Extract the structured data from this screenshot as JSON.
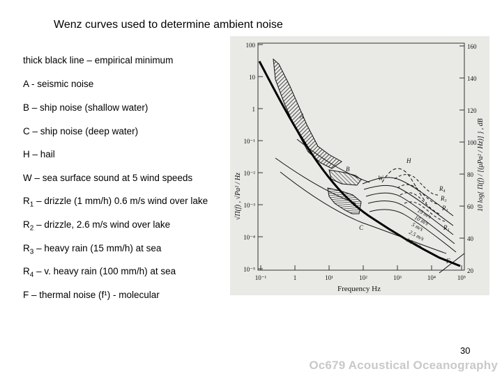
{
  "slide": {
    "title": "Wenz curves used to determine ambient noise",
    "legend": [
      {
        "main": "thick black line – empirical minimum"
      },
      {
        "main": "A - seismic noise"
      },
      {
        "main": "B – ship noise (shallow water)"
      },
      {
        "main": "C – ship noise (deep water)"
      },
      {
        "main": "H – hail"
      },
      {
        "main": "W – sea surface sound at 5 wind speeds"
      },
      {
        "pre": "R",
        "sub": "1",
        "post": " – drizzle (1 mm/h) 0.6 m/s wind over lake"
      },
      {
        "pre": "R",
        "sub": "2",
        "post": " – drizzle, 2.6 m/s wind over lake"
      },
      {
        "pre": "R",
        "sub": "3",
        "post": " – heavy rain (15 mm/h) at sea"
      },
      {
        "pre": "R",
        "sub": "4",
        "post": " – v. heavy rain (100 mm/h) at sea"
      },
      {
        "main": "F – thermal noise (f¹)  - molecular"
      }
    ],
    "page_number": "30",
    "footer": "Oc679 Acoustical Oceanography"
  },
  "figure": {
    "left_axis_label": "√Π(f) ,  √Pa² / Hz",
    "right_axis_label": "10 log{ Π(f) / [(μPa² / Hz)] } ,  dB",
    "x_label": "Frequency  Hz",
    "x_ticks": [
      "10⁻¹",
      "1",
      "10¹",
      "10²",
      "10³",
      "10⁴",
      "10⁵"
    ],
    "left_ticks": [
      "100",
      "10",
      "1",
      "10⁻¹",
      "10⁻²",
      "10⁻³",
      "10⁻⁴",
      "10⁻⁵"
    ],
    "right_ticks": [
      "160",
      "140",
      "120",
      "100",
      "80",
      "60",
      "40",
      "20"
    ],
    "curve_labels": {
      "A": "A",
      "B": "B",
      "C": "C",
      "W": "W",
      "H": "H",
      "F": "F",
      "R1": "R₁",
      "R2": "R₂",
      "R3": "R₃",
      "R4": "R₄",
      "R1b": "R₁"
    },
    "wind_labels": [
      "19 m/s",
      "10 m/s",
      "5 m/s",
      "2.5 m/s",
      "1.1 m/s"
    ]
  }
}
